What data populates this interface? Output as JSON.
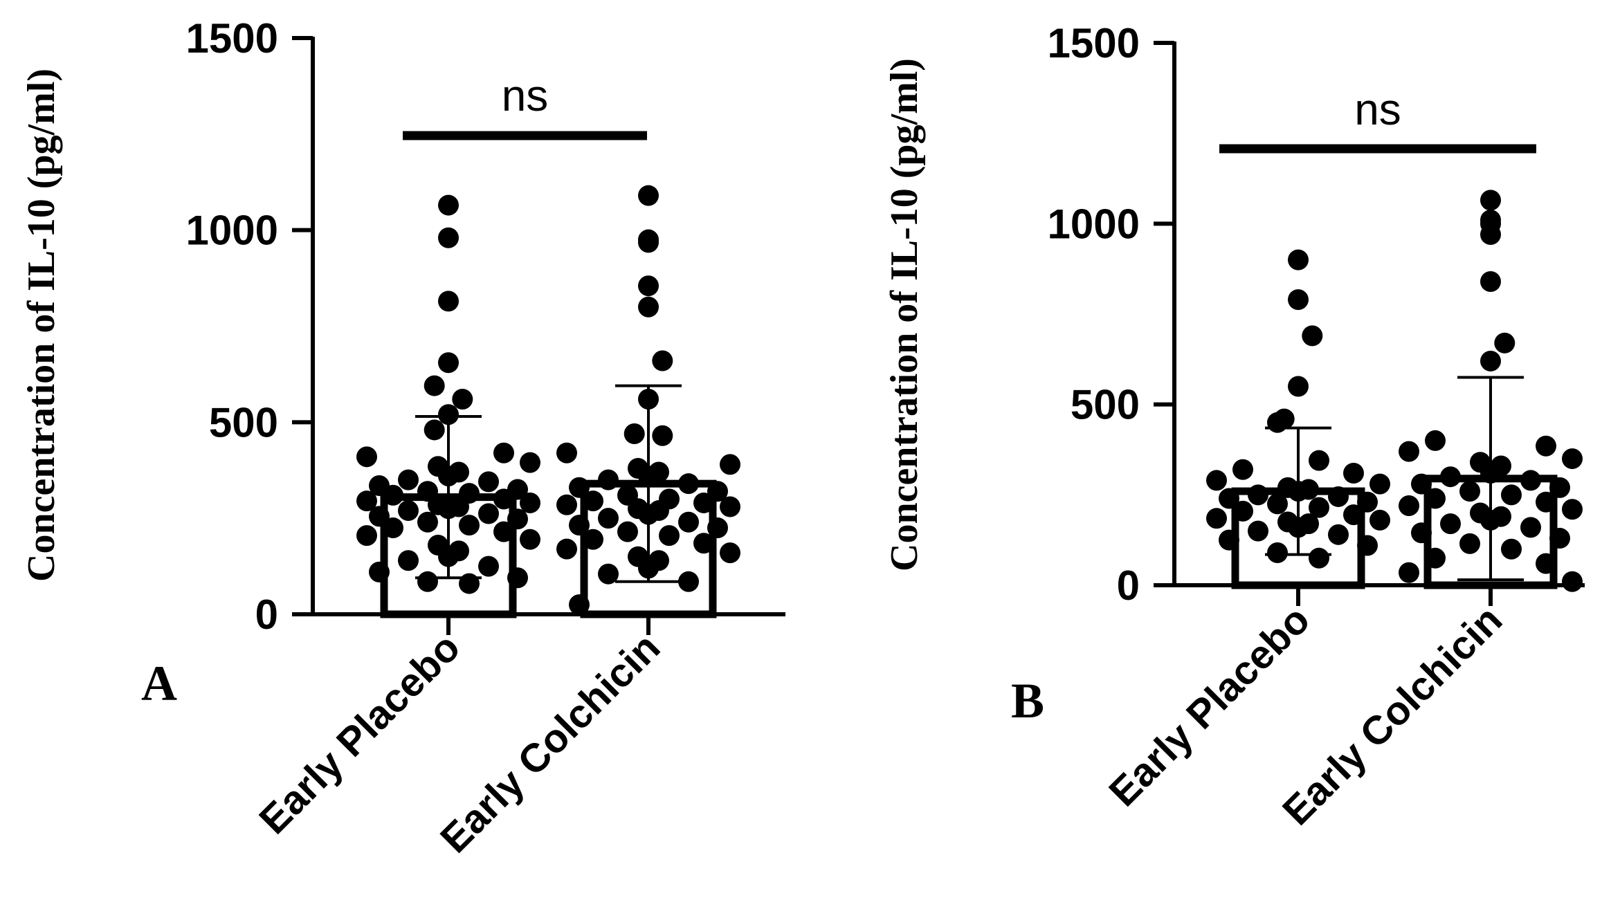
{
  "chart_data": [
    {
      "type": "bar",
      "panel_label": "A",
      "ylabel": "Concentration of IL-10 (pg/ml)",
      "ylim": [
        0,
        1500
      ],
      "yticks": [
        0,
        500,
        1000,
        1500
      ],
      "categories": [
        "Early Placebo",
        "Early Colchicin"
      ],
      "values": [
        305,
        340
      ],
      "sd": [
        210,
        255
      ],
      "significance": "ns",
      "points": [
        [
          1065,
          980,
          815,
          655,
          595,
          560,
          520,
          480,
          420,
          410,
          395,
          385,
          370,
          360,
          350,
          345,
          335,
          325,
          320,
          315,
          310,
          300,
          295,
          290,
          285,
          280,
          275,
          270,
          262,
          255,
          248,
          240,
          232,
          225,
          215,
          205,
          195,
          180,
          165,
          150,
          140,
          125,
          110,
          95,
          85,
          80
        ],
        [
          1090,
          975,
          968,
          855,
          800,
          660,
          560,
          470,
          465,
          420,
          390,
          380,
          370,
          360,
          350,
          340,
          330,
          320,
          310,
          300,
          295,
          290,
          285,
          280,
          275,
          270,
          260,
          250,
          240,
          232,
          225,
          215,
          205,
          195,
          185,
          170,
          160,
          150,
          140,
          120,
          105,
          85,
          25
        ]
      ]
    },
    {
      "type": "bar",
      "panel_label": "B",
      "ylabel": "Concentration of IL-10 (pg/ml)",
      "ylim": [
        0,
        1500
      ],
      "yticks": [
        0,
        500,
        1000,
        1500
      ],
      "categories": [
        "Early Placebo",
        "Early Colchicin"
      ],
      "values": [
        260,
        295
      ],
      "sd": [
        175,
        280
      ],
      "significance": "ns",
      "points": [
        [
          900,
          790,
          690,
          550,
          460,
          450,
          345,
          320,
          310,
          290,
          280,
          270,
          265,
          260,
          250,
          245,
          240,
          230,
          225,
          215,
          205,
          195,
          185,
          180,
          175,
          170,
          160,
          150,
          140,
          125,
          110,
          90,
          75
        ],
        [
          1065,
          1010,
          1000,
          970,
          840,
          670,
          620,
          400,
          385,
          370,
          350,
          340,
          330,
          310,
          300,
          290,
          280,
          270,
          260,
          250,
          240,
          230,
          220,
          210,
          200,
          190,
          180,
          170,
          160,
          145,
          130,
          115,
          100,
          75,
          60,
          35,
          10
        ]
      ]
    }
  ]
}
